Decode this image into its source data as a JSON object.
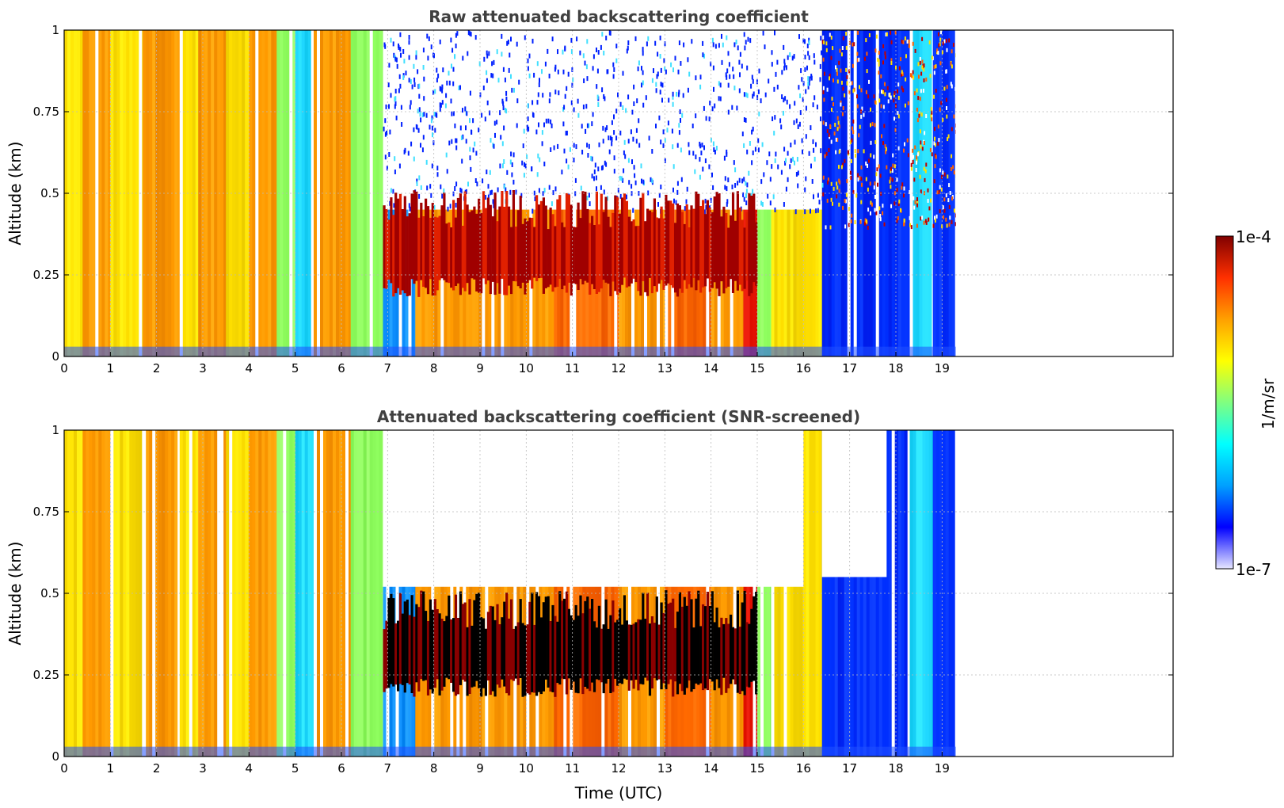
{
  "chart_data": [
    {
      "type": "heatmap",
      "title": "Raw attenuated backscattering coefficient",
      "xlabel": "",
      "ylabel": "Altitude (km)",
      "xlim": [
        0,
        24
      ],
      "ylim": [
        0,
        1
      ],
      "x_ticks": [
        0,
        1,
        2,
        3,
        4,
        5,
        6,
        7,
        8,
        9,
        10,
        11,
        12,
        13,
        14,
        15,
        16,
        17,
        18,
        19
      ],
      "x_tick_labels": [
        "0",
        "1",
        "2",
        "3",
        "4",
        "5",
        "6",
        "7",
        "8",
        "9",
        "10",
        "11",
        "12",
        "13",
        "14",
        "15",
        "16",
        "17",
        "18",
        "19"
      ],
      "y_ticks": [
        0,
        0.25,
        0.5,
        0.75,
        1
      ],
      "y_tick_labels": [
        "0",
        "0.25",
        "0.5",
        "0.75",
        "1"
      ],
      "grid": true,
      "data_end_hour": 19.3,
      "bands": [
        {
          "x0": 0.0,
          "x1": 0.4,
          "level": "yellow"
        },
        {
          "x0": 0.4,
          "x1": 1.0,
          "level": "orange"
        },
        {
          "x0": 1.0,
          "x1": 1.7,
          "level": "yellow"
        },
        {
          "x0": 1.7,
          "x1": 2.5,
          "level": "orange"
        },
        {
          "x0": 2.5,
          "x1": 2.9,
          "level": "yellow"
        },
        {
          "x0": 2.9,
          "x1": 3.5,
          "level": "orange"
        },
        {
          "x0": 3.5,
          "x1": 4.0,
          "level": "yellow"
        },
        {
          "x0": 4.0,
          "x1": 4.6,
          "level": "orange"
        },
        {
          "x0": 4.6,
          "x1": 5.0,
          "level": "green"
        },
        {
          "x0": 5.0,
          "x1": 5.4,
          "level": "cyan"
        },
        {
          "x0": 5.4,
          "x1": 6.2,
          "level": "orange"
        },
        {
          "x0": 6.2,
          "x1": 6.9,
          "level": "green"
        },
        {
          "x0": 6.9,
          "x1": 7.6,
          "level": "blue-cyan"
        },
        {
          "x0": 7.6,
          "x1": 10.6,
          "level": "orange"
        },
        {
          "x0": 10.6,
          "x1": 12.0,
          "level": "dark-orange"
        },
        {
          "x0": 12.0,
          "x1": 13.0,
          "level": "orange"
        },
        {
          "x0": 13.0,
          "x1": 14.0,
          "level": "dark-orange"
        },
        {
          "x0": 14.0,
          "x1": 14.7,
          "level": "orange"
        },
        {
          "x0": 14.7,
          "x1": 15.0,
          "level": "red"
        },
        {
          "x0": 15.0,
          "x1": 15.3,
          "level": "green"
        },
        {
          "x0": 15.3,
          "x1": 16.4,
          "level": "yellow"
        },
        {
          "x0": 16.4,
          "x1": 18.3,
          "level": "blue"
        },
        {
          "x0": 18.3,
          "x1": 18.8,
          "level": "cyan"
        },
        {
          "x0": 18.8,
          "x1": 19.3,
          "level": "blue"
        }
      ],
      "cloud_layer": {
        "x0": 6.9,
        "x1": 15.0,
        "bottom_km": 0.2,
        "top_km": 0.45
      }
    },
    {
      "type": "heatmap",
      "title": "Attenuated backscattering coefficient (SNR-screened)",
      "xlabel": "Time (UTC)",
      "ylabel": "Altitude (km)",
      "xlim": [
        0,
        24
      ],
      "ylim": [
        0,
        1
      ],
      "x_ticks": [
        0,
        1,
        2,
        3,
        4,
        5,
        6,
        7,
        8,
        9,
        10,
        11,
        12,
        13,
        14,
        15,
        16,
        17,
        18,
        19
      ],
      "x_tick_labels": [
        "0",
        "1",
        "2",
        "3",
        "4",
        "5",
        "6",
        "7",
        "8",
        "9",
        "10",
        "11",
        "12",
        "13",
        "14",
        "15",
        "16",
        "17",
        "18",
        "19"
      ],
      "y_ticks": [
        0,
        0.25,
        0.5,
        0.75,
        1
      ],
      "y_tick_labels": [
        "0",
        "0.25",
        "0.5",
        "0.75",
        "1"
      ],
      "grid": true,
      "data_end_hour": 19.3,
      "screened_region": {
        "x0": 6.9,
        "x1": 16.0,
        "above_km": 0.52
      }
    }
  ],
  "colorbar": {
    "max_label": "1e-4",
    "min_label": "1e-7",
    "label": "1/m/sr",
    "colors": [
      "#e6e6ff",
      "#0000ff",
      "#00a0ff",
      "#00ffff",
      "#80ff80",
      "#ffff00",
      "#ffa000",
      "#ff3000",
      "#800000"
    ]
  }
}
